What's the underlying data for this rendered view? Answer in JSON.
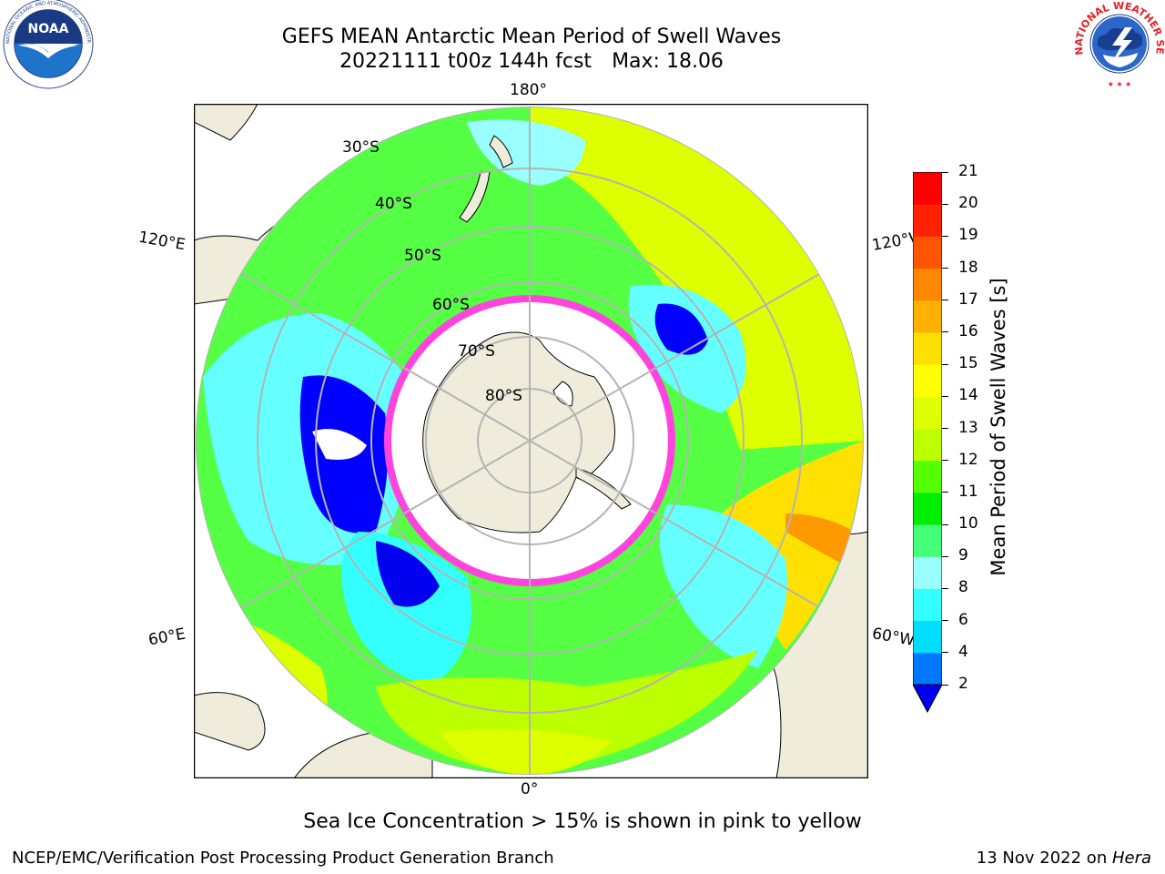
{
  "header": {
    "title_line1": "GEFS MEAN Antarctic Mean Period of Swell Waves",
    "run": "20221111 t00z 144h fcst",
    "max_text": "Max: 18.06"
  },
  "logos": {
    "noaa": {
      "label": "NOAA",
      "ring_text": "NATIONAL OCEANIC AND ATMOSPHERIC ADMINISTRATION · U.S. DEPARTMENT OF COMMERCE"
    },
    "nws": {
      "ring_text": "NATIONAL WEATHER SERVICE"
    }
  },
  "map": {
    "projection": "south polar stereographic",
    "lon_labels": {
      "top": "180°",
      "bottom": "0°",
      "upper_left": "120°E",
      "lower_left": "60°E",
      "upper_right": "120°W",
      "lower_right": "60°W"
    },
    "lat_labels": [
      "30°S",
      "40°S",
      "50°S",
      "60°S",
      "70°S",
      "80°S"
    ],
    "ocean_color_note": "",
    "colors": {
      "land": "#efecdc",
      "ice": "#ffffff",
      "grid": "#b4b4b4",
      "ice_edge": "#ff44dd"
    }
  },
  "colorbar": {
    "title": "Mean Period of Swell Waves [s]",
    "ticks": [
      "2",
      "4",
      "6",
      "8",
      "9",
      "10",
      "11",
      "12",
      "13",
      "14",
      "15",
      "16",
      "17",
      "18",
      "19",
      "20",
      "21"
    ],
    "colors": [
      "#0000ff",
      "#0077ff",
      "#00ddff",
      "#33ffff",
      "#99ffff",
      "#44ff77",
      "#00ee00",
      "#55ff00",
      "#bbff00",
      "#ddff00",
      "#ffff00",
      "#ffe000",
      "#ffb000",
      "#ff8800",
      "#ff5500",
      "#ff2200",
      "#ff0000"
    ],
    "under_color": "#0000ee"
  },
  "note": "Sea Ice Concentration > 15% is shown in pink to yellow",
  "footer": {
    "left": "NCEP/EMC/Verification Post Processing Product Generation Branch",
    "date": "13 Nov 2022 on ",
    "machine": "Hera"
  }
}
